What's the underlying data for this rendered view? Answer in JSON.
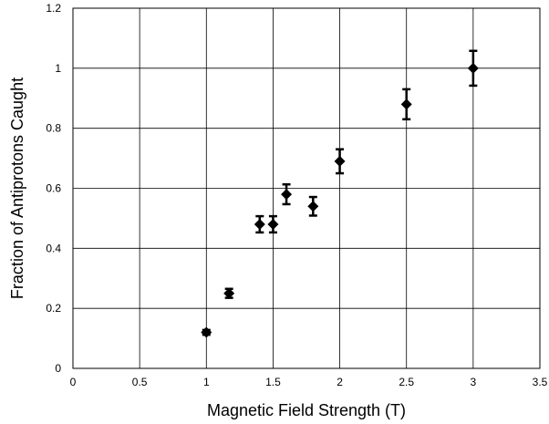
{
  "chart_data": {
    "type": "scatter",
    "title": "",
    "xlabel": "Magnetic Field Strength (T)",
    "ylabel": "Fraction of Antiprotons Caught",
    "xlim": [
      0,
      3.5
    ],
    "ylim": [
      0,
      1.2
    ],
    "x_ticks": [
      "0",
      "0.5",
      "1",
      "1.5",
      "2",
      "2.5",
      "3",
      "3.5"
    ],
    "y_ticks": [
      "0",
      "0.2",
      "0.4",
      "0.6",
      "0.8",
      "1",
      "1.2"
    ],
    "grid": true,
    "legend": "none",
    "marker": "diamond",
    "colors": {
      "marker": "#000000",
      "grid": "#000000",
      "background": "#ffffff"
    },
    "points": [
      {
        "x": 1.0,
        "y": 0.12,
        "err": 0.008
      },
      {
        "x": 1.17,
        "y": 0.25,
        "err": 0.015
      },
      {
        "x": 1.4,
        "y": 0.48,
        "err": 0.027
      },
      {
        "x": 1.5,
        "y": 0.48,
        "err": 0.027
      },
      {
        "x": 1.6,
        "y": 0.58,
        "err": 0.033
      },
      {
        "x": 1.8,
        "y": 0.54,
        "err": 0.031
      },
      {
        "x": 2.0,
        "y": 0.69,
        "err": 0.04
      },
      {
        "x": 2.5,
        "y": 0.88,
        "err": 0.05
      },
      {
        "x": 3.0,
        "y": 1.0,
        "err": 0.058
      }
    ]
  }
}
